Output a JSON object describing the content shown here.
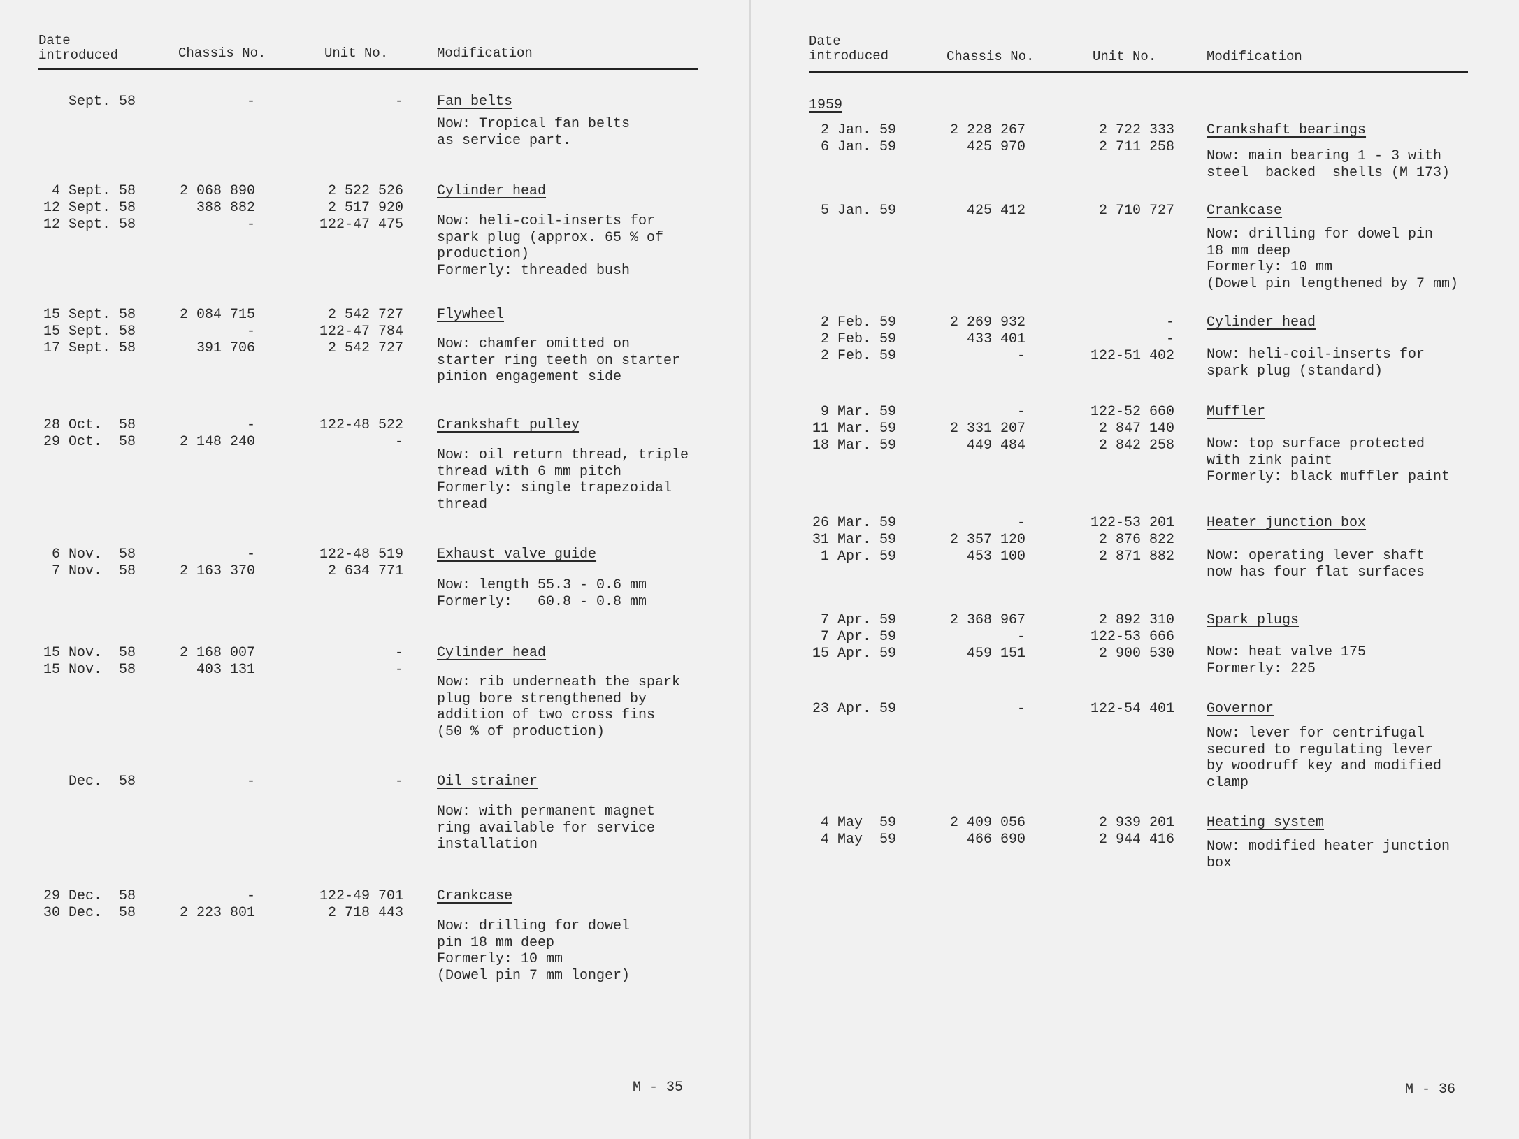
{
  "pages": [
    {
      "headers": {
        "date_line1": "Date",
        "date_line2": "introduced",
        "chassis": "Chassis No.",
        "unit": "Unit No.",
        "modification": "Modification"
      },
      "year_heading": "",
      "entries": [
        {
          "rows": [
            [
              "Sept. 58",
              "-",
              "-"
            ]
          ],
          "title": "Fan belts",
          "description": [
            "Now: Tropical fan belts",
            "as service part."
          ]
        },
        {
          "rows": [
            [
              "4 Sept. 58",
              "2 068 890",
              "2 522 526"
            ],
            [
              "12 Sept. 58",
              "388 882",
              "2 517 920"
            ],
            [
              "12 Sept. 58",
              "-",
              "122-47 475"
            ]
          ],
          "title": "Cylinder head",
          "description": [
            "Now: heli-coil-inserts for",
            "spark plug (approx. 65 % of",
            "production)",
            "Formerly: threaded bush"
          ]
        },
        {
          "rows": [
            [
              "15 Sept. 58",
              "2 084 715",
              "2 542 727"
            ],
            [
              "15 Sept. 58",
              "-",
              "122-47 784"
            ],
            [
              "17 Sept. 58",
              "391 706",
              "2 542 727"
            ]
          ],
          "title": "Flywheel",
          "description": [
            "Now: chamfer omitted on",
            "starter ring teeth on starter",
            "pinion engagement side"
          ]
        },
        {
          "rows": [
            [
              "28 Oct.  58",
              "-",
              "122-48 522"
            ],
            [
              "29 Oct.  58",
              "2 148 240",
              "-"
            ]
          ],
          "title": "Crankshaft pulley",
          "description": [
            "Now: oil return thread, triple",
            "thread with 6 mm pitch",
            "Formerly: single trapezoidal",
            "thread"
          ]
        },
        {
          "rows": [
            [
              "6 Nov.  58",
              "-",
              "122-48 519"
            ],
            [
              "7 Nov.  58",
              "2 163 370",
              "2 634 771"
            ]
          ],
          "title": "Exhaust valve guide",
          "description": [
            "Now: length 55.3 - 0.6 mm",
            "Formerly:   60.8 - 0.8 mm"
          ]
        },
        {
          "rows": [
            [
              "15 Nov.  58",
              "2 168 007",
              "-"
            ],
            [
              "15 Nov.  58",
              "403 131",
              "-"
            ]
          ],
          "title": "Cylinder head",
          "description": [
            "Now: rib underneath the spark",
            "plug bore strengthened by",
            "addition of two cross fins",
            "(50 % of production)"
          ]
        },
        {
          "rows": [
            [
              "Dec.  58",
              "-",
              "-"
            ]
          ],
          "title": "Oil strainer",
          "description": [
            "Now: with permanent magnet",
            "ring available for service",
            "installation"
          ]
        },
        {
          "rows": [
            [
              "29 Dec.  58",
              "-",
              "122-49 701"
            ],
            [
              "30 Dec.  58",
              "2 223 801",
              "2 718 443"
            ]
          ],
          "title": "Crankcase",
          "description": [
            "Now: drilling for dowel",
            "pin 18 mm deep",
            "Formerly: 10 mm",
            "(Dowel pin 7 mm longer)"
          ]
        }
      ],
      "page_number": "M - 35"
    },
    {
      "headers": {
        "date_line1": "Date",
        "date_line2": "introduced",
        "chassis": "Chassis No.",
        "unit": "Unit No.",
        "modification": "Modification"
      },
      "year_heading": "1959",
      "entries": [
        {
          "rows": [
            [
              "2 Jan. 59",
              "2 228 267",
              "2 722 333"
            ],
            [
              "6 Jan. 59",
              "425 970",
              "2 711 258"
            ]
          ],
          "title": "Crankshaft bearings",
          "description": [
            "Now: main bearing 1 - 3 with",
            "steel  backed  shells (M 173)"
          ]
        },
        {
          "rows": [
            [
              "5 Jan. 59",
              "425 412",
              "2 710 727"
            ]
          ],
          "title": "Crankcase",
          "description": [
            "Now: drilling for dowel pin",
            "18 mm deep",
            "Formerly: 10 mm",
            "(Dowel pin lengthened by 7 mm)"
          ]
        },
        {
          "rows": [
            [
              "2 Feb. 59",
              "2 269 932",
              "-"
            ],
            [
              "2 Feb. 59",
              "433 401",
              "-"
            ],
            [
              "2 Feb. 59",
              "-",
              "122-51 402"
            ]
          ],
          "title": "Cylinder head",
          "description": [
            "Now: heli-coil-inserts for",
            "spark plug (standard)"
          ]
        },
        {
          "rows": [
            [
              "9 Mar. 59",
              "-",
              "122-52 660"
            ],
            [
              "11 Mar. 59",
              "2 331 207",
              "2 847 140"
            ],
            [
              "18 Mar. 59",
              "449 484",
              "2 842 258"
            ]
          ],
          "title": "Muffler",
          "description": [
            "Now: top surface protected",
            "with zink paint",
            "Formerly: black muffler paint"
          ]
        },
        {
          "rows": [
            [
              "26 Mar. 59",
              "-",
              "122-53 201"
            ],
            [
              "31 Mar. 59",
              "2 357 120",
              "2 876 822"
            ],
            [
              "1 Apr. 59",
              "453 100",
              "2 871 882"
            ]
          ],
          "title": "Heater junction box",
          "description": [
            "Now: operating lever shaft",
            "now has four flat surfaces"
          ]
        },
        {
          "rows": [
            [
              "7 Apr. 59",
              "2 368 967",
              "2 892 310"
            ],
            [
              "7 Apr. 59",
              "-",
              "122-53 666"
            ],
            [
              "15 Apr. 59",
              "459 151",
              "2 900 530"
            ]
          ],
          "title": "Spark plugs",
          "description": [
            "Now: heat valve 175",
            "Formerly: 225"
          ]
        },
        {
          "rows": [
            [
              "23 Apr. 59",
              "-",
              "122-54 401"
            ]
          ],
          "title": "Governor",
          "description": [
            "Now: lever for centrifugal",
            "secured to regulating lever",
            "by woodruff key and modified",
            "clamp"
          ]
        },
        {
          "rows": [
            [
              "4 May  59",
              "2 409 056",
              "2 939 201"
            ],
            [
              "4 May  59",
              "466 690",
              "2 944 416"
            ]
          ],
          "title": "Heating system",
          "description": [
            "Now: modified heater junction",
            "box"
          ]
        }
      ],
      "page_number": "M - 36"
    }
  ]
}
